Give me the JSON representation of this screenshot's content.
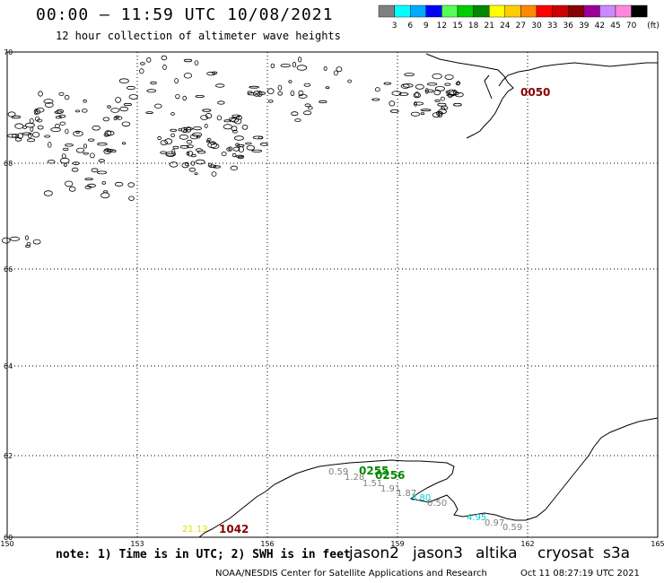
{
  "header": {
    "title": "00:00 – 11:59 UTC 10/08/2021",
    "subtitle": "12 hour collection of altimeter wave heights"
  },
  "legend": {
    "unit": "(ft)",
    "bins": [
      {
        "label": "3",
        "color": "#808080"
      },
      {
        "label": "6",
        "color": "#00ffff"
      },
      {
        "label": "9",
        "color": "#00aaff"
      },
      {
        "label": "12",
        "color": "#0000ff"
      },
      {
        "label": "15",
        "color": "#55ff55"
      },
      {
        "label": "18",
        "color": "#00cc00"
      },
      {
        "label": "21",
        "color": "#008800"
      },
      {
        "label": "24",
        "color": "#ffff00"
      },
      {
        "label": "27",
        "color": "#ffcc00"
      },
      {
        "label": "30",
        "color": "#ff8800"
      },
      {
        "label": "33",
        "color": "#ff0000"
      },
      {
        "label": "36",
        "color": "#cc0000"
      },
      {
        "label": "39",
        "color": "#880000"
      },
      {
        "label": "42",
        "color": "#990099"
      },
      {
        "label": "45",
        "color": "#cc88ff"
      },
      {
        "label": "70",
        "color": "#ff88dd"
      },
      {
        "label": "",
        "color": "#000000"
      }
    ]
  },
  "map": {
    "lat_labels": [
      "70",
      "68",
      "66",
      "64",
      "62",
      "60"
    ],
    "lon_labels": [
      "150",
      "153",
      "156",
      "159",
      "162",
      "165"
    ],
    "pass_labels": [
      {
        "text": "0050",
        "color": "#880000"
      },
      {
        "text": "0255",
        "color": "#008800"
      },
      {
        "text": "0256",
        "color": "#008800"
      },
      {
        "text": "1042",
        "color": "#880000"
      }
    ],
    "measurements": [
      {
        "text": "0.59",
        "color": "#808080"
      },
      {
        "text": "1.28",
        "color": "#808080"
      },
      {
        "text": "1.51",
        "color": "#808080"
      },
      {
        "text": "1.91",
        "color": "#808080"
      },
      {
        "text": "1.87",
        "color": "#808080"
      },
      {
        "text": "3.80",
        "color": "#00cccc"
      },
      {
        "text": "0.50",
        "color": "#808080"
      },
      {
        "text": "4.95",
        "color": "#00cccc"
      },
      {
        "text": "0.97",
        "color": "#808080"
      },
      {
        "text": "0.59",
        "color": "#808080"
      },
      {
        "text": "21.13",
        "color": "#dddd00"
      }
    ]
  },
  "note": "note: 1) Time is in UTC; 2) SWH is in feet",
  "satellites": [
    {
      "name": "jason2",
      "color": "#0000cc"
    },
    {
      "name": "jason3",
      "color": "#008800"
    },
    {
      "name": "altika",
      "color": "#ff8800"
    },
    {
      "name": "cryosat",
      "color": "#cc0000"
    },
    {
      "name": "s3a",
      "color": "#880000"
    }
  ],
  "footer": {
    "left": "NOAA/NESDIS Center for Satellite Applications and Research",
    "right": "Oct 11 08:27:19 UTC 2021"
  }
}
